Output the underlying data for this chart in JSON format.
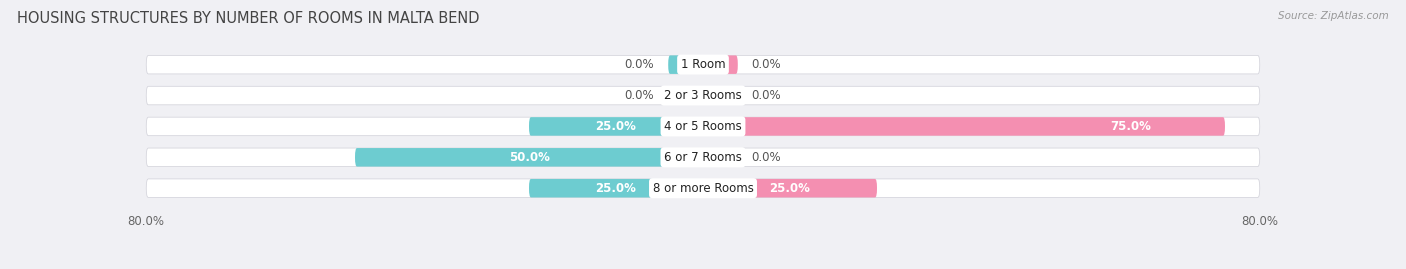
{
  "title": "HOUSING STRUCTURES BY NUMBER OF ROOMS IN MALTA BEND",
  "source": "Source: ZipAtlas.com",
  "categories": [
    "1 Room",
    "2 or 3 Rooms",
    "4 or 5 Rooms",
    "6 or 7 Rooms",
    "8 or more Rooms"
  ],
  "owner_values": [
    0.0,
    0.0,
    25.0,
    50.0,
    25.0
  ],
  "renter_values": [
    0.0,
    0.0,
    75.0,
    0.0,
    25.0
  ],
  "owner_color": "#6dccd0",
  "renter_color": "#f48fb1",
  "bar_bg_color": "#e8e8ec",
  "bar_height": 0.6,
  "xlim_left": -100.0,
  "xlim_right": 100.0,
  "data_max": 80.0,
  "title_fontsize": 10.5,
  "label_fontsize": 8.5,
  "cat_fontsize": 8.5,
  "tick_fontsize": 8.5,
  "bg_color": "#f0f0f4",
  "x_tick_left": -80,
  "x_tick_right": 80
}
